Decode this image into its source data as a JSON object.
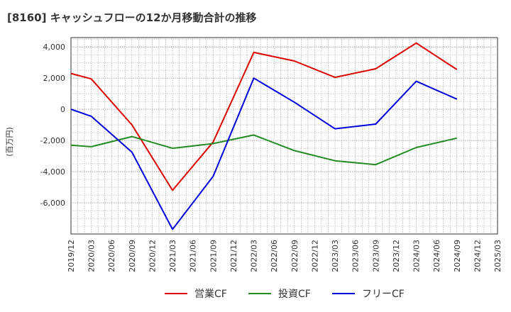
{
  "chart_data": {
    "type": "line",
    "title": "[8160]  キャッシュフローの12か月移動合計の推移",
    "ylabel": "(百万円)",
    "xlabel": "",
    "ylim": [
      -8000,
      4600
    ],
    "yticks": [
      4000,
      2000,
      0,
      -2000,
      -4000,
      -6000
    ],
    "ytick_labels": [
      "4,000",
      "2,000",
      "0",
      "-2,000",
      "-4,000",
      "-6,000"
    ],
    "categories": [
      "2019/12",
      "2020/03",
      "2020/06",
      "2020/09",
      "2020/12",
      "2021/03",
      "2021/06",
      "2021/09",
      "2021/12",
      "2022/03",
      "2022/06",
      "2022/09",
      "2022/12",
      "2023/03",
      "2023/06",
      "2023/09",
      "2023/12",
      "2024/03",
      "2024/06",
      "2024/09",
      "2024/12",
      "2025/03"
    ],
    "grid": true,
    "legend_position": "bottom",
    "series": [
      {
        "name": "営業CF",
        "color": "#dd0000",
        "values": [
          2300,
          1950,
          null,
          -1000,
          null,
          -5200,
          null,
          -2100,
          null,
          3650,
          null,
          3100,
          null,
          2050,
          null,
          2600,
          null,
          4250,
          null,
          2550,
          null,
          null
        ]
      },
      {
        "name": "投資CF",
        "color": "#228B22",
        "values": [
          -2300,
          -2400,
          null,
          -1750,
          null,
          -2500,
          null,
          -2200,
          null,
          -1650,
          null,
          -2650,
          null,
          -3300,
          null,
          -3550,
          null,
          -2450,
          null,
          -1850,
          null,
          null
        ]
      },
      {
        "name": "フリーCF",
        "color": "#0000dd",
        "values": [
          0,
          -450,
          null,
          -2750,
          null,
          -7700,
          null,
          -4300,
          null,
          2000,
          null,
          450,
          null,
          -1250,
          null,
          -950,
          null,
          1800,
          null,
          650,
          null,
          null
        ]
      }
    ]
  }
}
